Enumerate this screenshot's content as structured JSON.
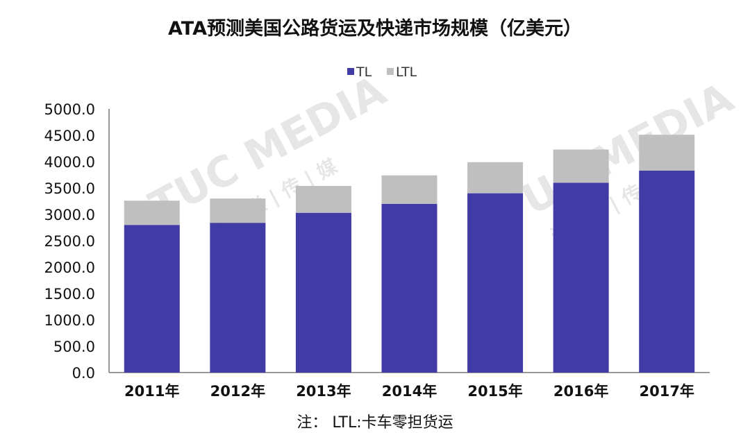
{
  "chart_data": {
    "type": "bar",
    "stacked": true,
    "title": "ATA预测美国公路货运及快递市场规模（亿美元）",
    "categories": [
      "2011年",
      "2012年",
      "2013年",
      "2014年",
      "2015年",
      "2016年",
      "2017年"
    ],
    "series": [
      {
        "name": "TL",
        "color": "#413ba6",
        "values": [
          2800,
          2840,
          3030,
          3200,
          3400,
          3600,
          3830
        ]
      },
      {
        "name": "LTL",
        "color": "#bfbfbf",
        "values": [
          460,
          460,
          510,
          540,
          590,
          630,
          680
        ]
      }
    ],
    "ylim": [
      0,
      5000
    ],
    "yticks": [
      "0.0",
      "500.0",
      "1000.0",
      "1500.0",
      "2000.0",
      "2500.0",
      "3000.0",
      "3500.0",
      "4000.0",
      "4500.0",
      "5000.0"
    ],
    "grid": false,
    "legend_position": "top-center",
    "note": "注： LTL:卡车零担货运"
  },
  "watermark": {
    "text": "TUC MEDIA",
    "subtext": "运 | 联 | 传 | 媒"
  }
}
